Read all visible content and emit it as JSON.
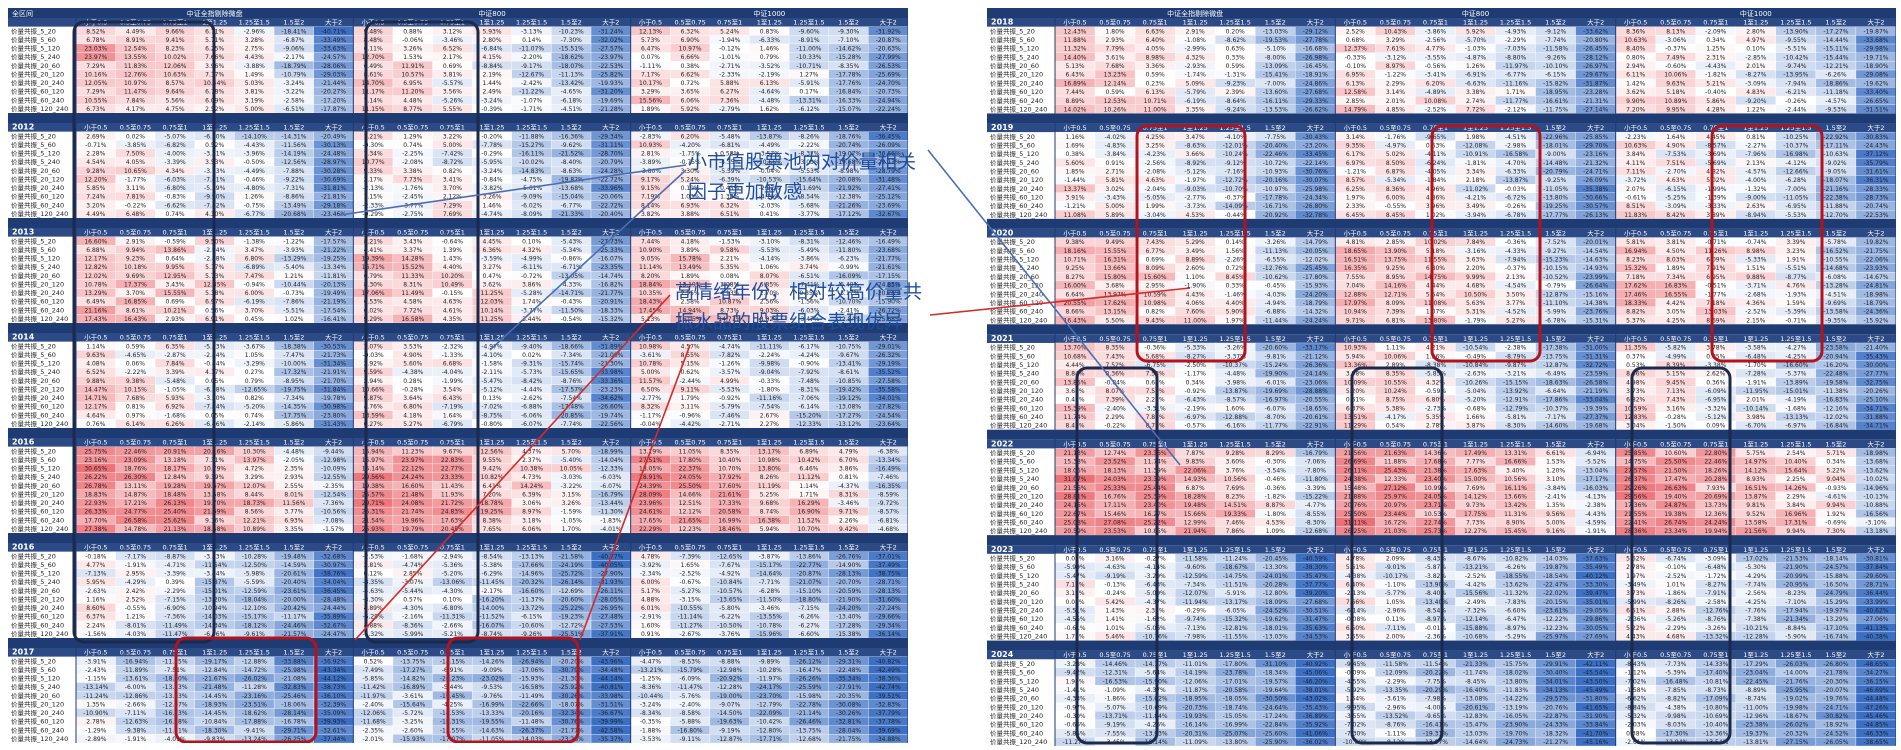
{
  "left": {
    "header": {
      "corner": "全区间",
      "groups": [
        "中证全指剔除微盘",
        "中证800",
        "中证1000"
      ]
    },
    "bin_labels": [
      "小于0.5",
      "0.5至0.75",
      "0.75至1",
      "1至1.25",
      "1.25至1.5",
      "1.5至2",
      "大于2"
    ],
    "row_labels": [
      "价量共振_5_20",
      "价量共振_5_60",
      "价量共振_5_120",
      "价量共振_5_240",
      "价量共振_20_60",
      "价量共振_20_120",
      "价量共振_20_240",
      "价量共振_60_120",
      "价量共振_60_240",
      "价量共振_120_240"
    ],
    "years": [
      "",
      "2012",
      "2013",
      "2014",
      "2016",
      "2016",
      "2017"
    ]
  },
  "right": {
    "header": {
      "groups": [
        "中证全指剔除微盘",
        "中证800",
        "中证1000"
      ]
    },
    "bin_labels": [
      "小于0.5",
      "0.5至0.75",
      "0.75至1",
      "1至1.25",
      "1.25至1.5",
      "1.5至2",
      "大于2"
    ],
    "row_labels": [
      "价量共振_5_20",
      "价量共振_5_60",
      "价量共振_5_120",
      "价量共振_5_240",
      "价量共振_20_60",
      "价量共振_20_120",
      "价量共振_20_240",
      "价量共振_60_120",
      "价量共振_60_240",
      "价量共振_120_240"
    ],
    "years": [
      "2018",
      "2019",
      "2020",
      "2021",
      "2022",
      "2023",
      "2024"
    ]
  },
  "annotations": {
    "small_cap": "小市值股票池内对价量相关因子更加敏感",
    "high_sentiment": "高情绪年份，相对较高价量共振水品的股票组合表现优异"
  },
  "colors": {
    "header_bg": "#1f3b73",
    "header_text": "#ffffff",
    "pos": "#e8474f",
    "neg": "#3b6fc4",
    "box_red": "#b5121b",
    "box_dark": "#1b2a4a",
    "annotation": "#1f4e9e",
    "arrow_blue": "#4a6fb5",
    "arrow_red": "#d42a2a"
  },
  "chart_data": {
    "type": "table",
    "note_unit": "%",
    "left_highlight_2012": [
      [
        8.52,
        4.49,
        9.66,
        6.71,
        -2.96,
        -18.41,
        -40.71
      ],
      [
        6.78,
        8.91,
        9.41,
        5.71,
        3.28,
        -6.87,
        -33.49
      ],
      [
        23.03,
        12.54,
        8.23,
        6.25,
        2.75,
        -9.06,
        -33.63
      ],
      [
        23.97,
        13.55,
        10.02,
        7.66,
        4.43,
        -2.17,
        -24.57
      ],
      [
        7.29,
        11.83,
        12.06,
        3.96,
        -3.88,
        -18.79,
        -28.06
      ],
      [
        10.16,
        12.76,
        10.63,
        7.17,
        1.49,
        -10.79,
        -29.03
      ],
      [
        12.05,
        10.97,
        8.57,
        10.44,
        5.03,
        -3.24,
        -21.44
      ],
      [
        7.29,
        11.47,
        9.64,
        6.78,
        3.81,
        -3.22,
        -20.27
      ],
      [
        10.55,
        7.84,
        5.56,
        6.09,
        3.19,
        -2.58,
        -17.2
      ],
      [
        6.73,
        4.17,
        4.75,
        2.52,
        5.0,
        -6.51,
        -17.87
      ]
    ],
    "sample_rows_2017": [
      [
        -19.12,
        -12.75,
        -11.94,
        -11.07,
        -15.1,
        -21.48,
        -30.6
      ],
      [
        -17.43,
        -14.6,
        -10.72,
        -9.78,
        -11.19,
        -19.48,
        -31.92
      ],
      [
        -15.58,
        -13.86,
        -10.81,
        -8.5,
        -10.53,
        -15.47,
        -28.06
      ],
      [
        -15.49,
        -11.98,
        -8.75,
        -7.21,
        -6.09,
        -14.31,
        -23.52
      ],
      [
        -17.88,
        -14.94,
        -10.76,
        -10.7,
        -16.76,
        -21.53,
        -26.81
      ]
    ]
  }
}
